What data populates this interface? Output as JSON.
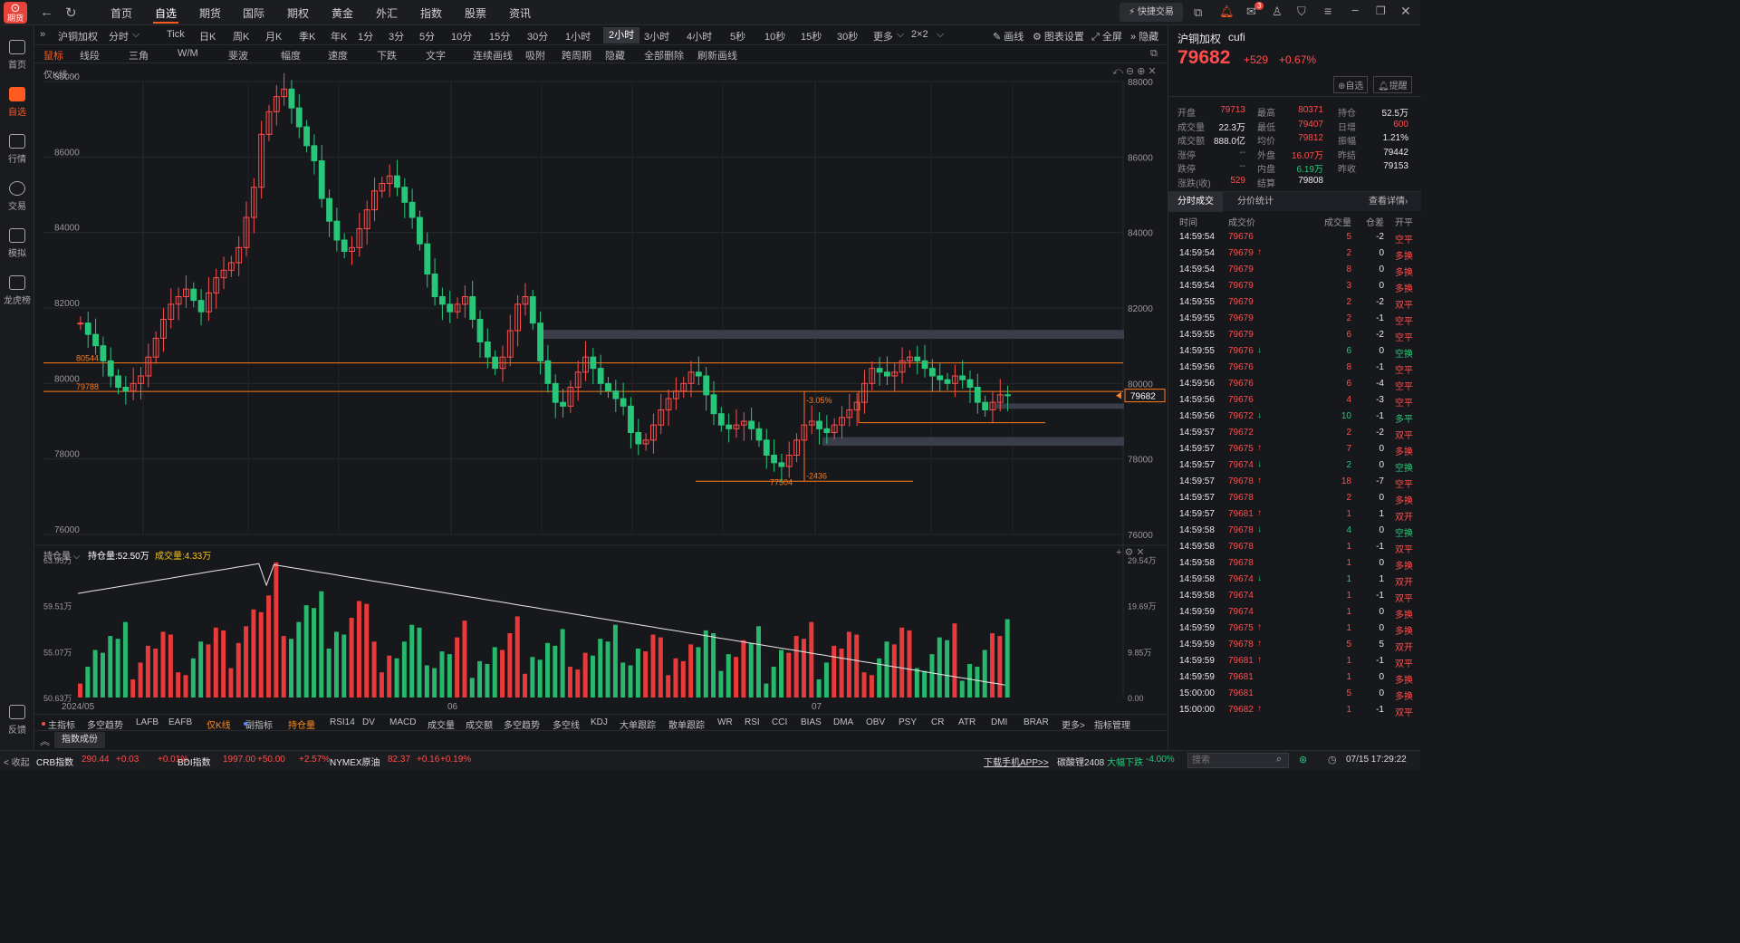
{
  "app": {
    "logo_text": "期货"
  },
  "nav": {
    "items": [
      "首页",
      "自选",
      "期货",
      "国际",
      "期权",
      "黄金",
      "外汇",
      "指数",
      "股票",
      "资讯"
    ],
    "active": "自选",
    "quick_trade": "快捷交易",
    "mail_badge": "3"
  },
  "sidebar": {
    "items": [
      "首页",
      "自选",
      "行情",
      "交易",
      "模拟",
      "龙虎榜"
    ],
    "feedback": "反馈"
  },
  "periods": {
    "symbol": "沪铜加权",
    "items": [
      "分时",
      "Tick",
      "日K",
      "周K",
      "月K",
      "季K",
      "年K",
      "1分",
      "3分",
      "5分",
      "10分",
      "15分",
      "30分",
      "1小时",
      "2小时",
      "3小时",
      "4小时",
      "5秒",
      "10秒",
      "15秒",
      "30秒",
      "更多",
      "2×2"
    ],
    "active": "2小时",
    "right": [
      "画线",
      "图表设置",
      "全屏",
      "隐藏"
    ]
  },
  "tools": [
    "鼠标",
    "线段",
    "三角",
    "W/M",
    "斐波",
    "幅度",
    "速度",
    "下跌",
    "文字",
    "连续画线",
    "吸附",
    "跨周期",
    "隐藏",
    "全部删除",
    "刷新画线"
  ],
  "chart": {
    "mode_label": "仅K线",
    "price_ticks": [
      "88000",
      "86000",
      "84000",
      "82000",
      "80000",
      "78000",
      "76000"
    ],
    "line_labels": [
      "80544",
      "79788"
    ],
    "last_price": "79682",
    "annot_pct": "-3.05%",
    "annot_diff": "-2436",
    "annot_low": "77504",
    "x_labels": [
      "2024/05",
      "06",
      "07"
    ],
    "sub": {
      "name": "持仓量",
      "oi_label": "持仓量:52.50万",
      "vol_label": "成交量:4.33万",
      "left_ticks": [
        "63.95万",
        "59.51万",
        "55.07万",
        "50.63万"
      ],
      "right_ticks": [
        "29.54万",
        "19.69万",
        "9.85万",
        "0.00"
      ]
    }
  },
  "indicators": {
    "items": [
      "主指标",
      "多空趋势",
      "LAFB",
      "EAFB",
      "仅K线",
      "副指标",
      "持仓量",
      "RSI14",
      "DV",
      "MACD",
      "成交量",
      "成交额",
      "多空趋势",
      "多空线",
      "KDJ",
      "大单跟踪",
      "散单跟踪",
      "WR",
      "RSI",
      "CCI",
      "BIAS",
      "DMA",
      "OBV",
      "PSY",
      "CR",
      "ATR",
      "DMI",
      "BRAR",
      "更多>"
    ],
    "manage": "指标管理",
    "tab": "指数成份"
  },
  "quote": {
    "name": "沪铜加权",
    "code": "cufi",
    "price": "79682",
    "change": "+529",
    "pct": "+0.67%",
    "btn_watch": "自选",
    "btn_alert": "提醒",
    "rows": [
      [
        "开盘",
        "79713",
        "最高",
        "80371",
        "持仓",
        "52.5万"
      ],
      [
        "成交量",
        "22.3万",
        "最低",
        "79407",
        "日增",
        "600"
      ],
      [
        "成交额",
        "888.0亿",
        "均价",
        "79812",
        "振幅",
        "1.21%"
      ],
      [
        "涨停",
        "--",
        "外盘",
        "16.07万",
        "昨结",
        "79442"
      ],
      [
        "跌停",
        "--",
        "内盘",
        "6.19万",
        "昨收",
        "79153"
      ],
      [
        "涨跌(收)",
        "529",
        "结算",
        "79808",
        "",
        ""
      ]
    ]
  },
  "trades": {
    "tabs": [
      "分时成交",
      "分价统计"
    ],
    "detail": "查看详情›",
    "headers": [
      "时间",
      "成交价",
      "成交量",
      "仓差",
      "开平"
    ],
    "rows": [
      [
        "14:59:54",
        "79676",
        "",
        "5",
        "-2",
        "空平"
      ],
      [
        "14:59:54",
        "79679",
        "up",
        "2",
        "0",
        "多换"
      ],
      [
        "14:59:54",
        "79679",
        "",
        "8",
        "0",
        "多换"
      ],
      [
        "14:59:54",
        "79679",
        "",
        "3",
        "0",
        "多换"
      ],
      [
        "14:59:55",
        "79679",
        "",
        "2",
        "-2",
        "双平"
      ],
      [
        "14:59:55",
        "79679",
        "",
        "2",
        "-1",
        "空平"
      ],
      [
        "14:59:55",
        "79679",
        "",
        "6",
        "-2",
        "空平"
      ],
      [
        "14:59:55",
        "79676",
        "down",
        "6",
        "0",
        "空换"
      ],
      [
        "14:59:56",
        "79676",
        "",
        "8",
        "-1",
        "空平"
      ],
      [
        "14:59:56",
        "79676",
        "",
        "6",
        "-4",
        "空平"
      ],
      [
        "14:59:56",
        "79676",
        "",
        "4",
        "-3",
        "空平"
      ],
      [
        "14:59:56",
        "79672",
        "down",
        "10",
        "-1",
        "多平"
      ],
      [
        "14:59:57",
        "79672",
        "",
        "2",
        "-2",
        "双平"
      ],
      [
        "14:59:57",
        "79675",
        "up",
        "7",
        "0",
        "多换"
      ],
      [
        "14:59:57",
        "79674",
        "down",
        "2",
        "0",
        "空换"
      ],
      [
        "14:59:57",
        "79678",
        "up",
        "18",
        "-7",
        "空平"
      ],
      [
        "14:59:57",
        "79678",
        "",
        "2",
        "0",
        "多换"
      ],
      [
        "14:59:57",
        "79681",
        "up",
        "1",
        "1",
        "双开"
      ],
      [
        "14:59:58",
        "79678",
        "down",
        "4",
        "0",
        "空换"
      ],
      [
        "14:59:58",
        "79678",
        "",
        "1",
        "-1",
        "双平"
      ],
      [
        "14:59:58",
        "79678",
        "",
        "1",
        "0",
        "多换"
      ],
      [
        "14:59:58",
        "79674",
        "down",
        "1",
        "1",
        "双开"
      ],
      [
        "14:59:58",
        "79674",
        "",
        "1",
        "-1",
        "双平"
      ],
      [
        "14:59:59",
        "79674",
        "",
        "1",
        "0",
        "多换"
      ],
      [
        "14:59:59",
        "79675",
        "up",
        "1",
        "0",
        "多换"
      ],
      [
        "14:59:59",
        "79678",
        "up",
        "5",
        "5",
        "双开"
      ],
      [
        "14:59:59",
        "79681",
        "up",
        "1",
        "-1",
        "双平"
      ],
      [
        "14:59:59",
        "79681",
        "",
        "1",
        "0",
        "多换"
      ],
      [
        "15:00:00",
        "79681",
        "",
        "5",
        "0",
        "多换"
      ],
      [
        "15:00:00",
        "79682",
        "up",
        "1",
        "-1",
        "双平"
      ]
    ]
  },
  "status": {
    "collapse": "< 收起",
    "items": [
      [
        "CRB指数",
        "290.44",
        "+0.03",
        "+0.01%"
      ],
      [
        "BDI指数",
        "1997.00",
        "+50.00",
        "+2.57%"
      ],
      [
        "NYMEX原油",
        "82.37",
        "+0.16",
        "+0.19%"
      ]
    ],
    "download": "下载手机APP>>",
    "ticker_name": "碳酸锂2408",
    "ticker_tag": "大幅下跌",
    "ticker_pct": "-4.00%",
    "search_placeholder": "搜索",
    "datetime": "07/15 17:29:22"
  },
  "chart_data": {
    "type": "candlestick",
    "ylim": [
      76000,
      88000
    ],
    "x_labels": [
      "2024/05",
      "06",
      "07"
    ],
    "horizontal_lines": [
      80544,
      79788
    ],
    "last": 79682,
    "low_marker": 77504,
    "sub_chart": {
      "type": "bar+line",
      "oi_range": [
        50.63,
        63.95
      ],
      "vol_range": [
        0,
        29.54
      ],
      "oi_current": 52.5,
      "vol_current": 4.33
    }
  }
}
